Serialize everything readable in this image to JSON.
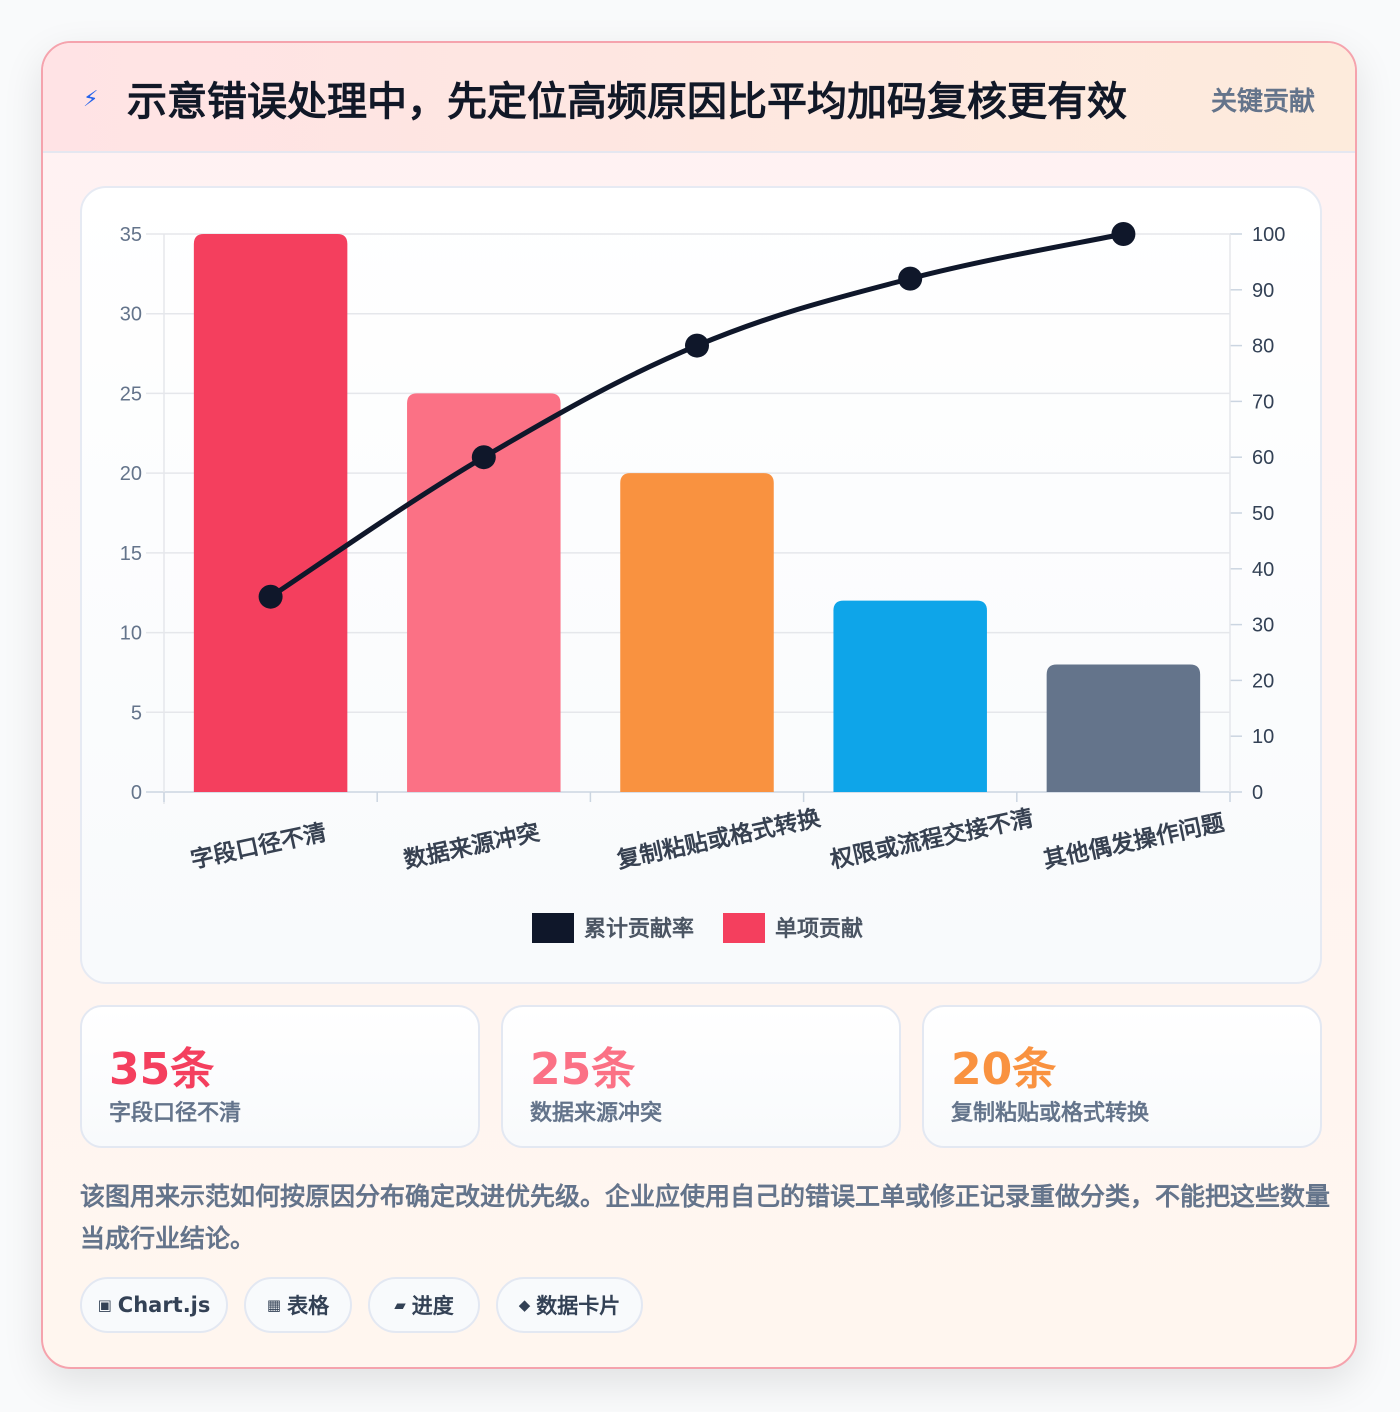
{
  "header": {
    "icon": "bolt-icon",
    "title": "示意错误处理中，先定位高频原因比平均加码复核更有效",
    "tag": "关键贡献"
  },
  "chart_data": {
    "type": "bar",
    "categories": [
      "字段口径不清",
      "数据来源冲突",
      "复制粘贴或格式转换",
      "权限或流程交接不清",
      "其他偶发操作问题"
    ],
    "series": [
      {
        "name": "单项贡献",
        "type": "bar",
        "axis": "left",
        "values": [
          35,
          25,
          20,
          12,
          8
        ]
      },
      {
        "name": "累计贡献率",
        "type": "line",
        "axis": "right",
        "values": [
          35,
          60,
          80,
          92,
          100
        ]
      }
    ],
    "bar_colors": [
      "#f43f5e",
      "#fb7185",
      "#f99240",
      "#0ea5e9",
      "#64748b"
    ],
    "line_color": "#0f172a",
    "ylim_left": [
      0,
      35
    ],
    "ylim_right": [
      0,
      100
    ],
    "yticks_left": [
      0,
      5,
      10,
      15,
      20,
      25,
      30,
      35
    ],
    "yticks_right": [
      0,
      10,
      20,
      30,
      40,
      50,
      60,
      70,
      80,
      90,
      100
    ],
    "grid": true,
    "legend": [
      {
        "label": "累计贡献率",
        "color": "#0f172a"
      },
      {
        "label": "单项贡献",
        "color": "#f43f5e"
      }
    ],
    "legend_position": "bottom"
  },
  "stats": [
    {
      "value": "35条",
      "label": "字段口径不清",
      "color": "#f43f5e"
    },
    {
      "value": "25条",
      "label": "数据来源冲突",
      "color": "#fb7185"
    },
    {
      "value": "20条",
      "label": "复制粘贴或格式转换",
      "color": "#f99240"
    }
  ],
  "description": "该图用来示范如何按原因分布确定改进优先级。企业应使用自己的错误工单或修正记录重做分类，不能把这些数量当成行业结论。",
  "chips": [
    {
      "icon": "▣",
      "label": "Chart.js"
    },
    {
      "icon": "▦",
      "label": "表格"
    },
    {
      "icon": "▰",
      "label": "进度"
    },
    {
      "icon": "◆",
      "label": "数据卡片"
    }
  ]
}
